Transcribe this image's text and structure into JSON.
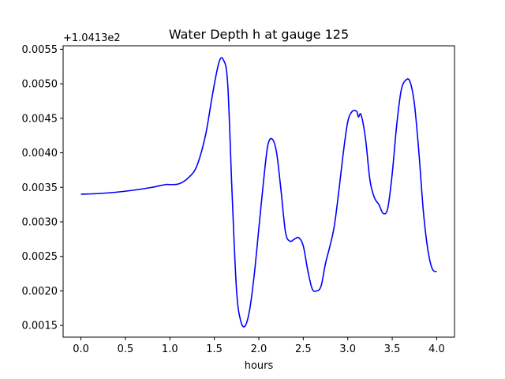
{
  "chart_data": {
    "type": "line",
    "title": "Water Depth h at gauge 125",
    "xlabel": "hours",
    "ylabel": "",
    "y_offset_label": "+1.0413e2",
    "xlim": [
      -0.2,
      4.2
    ],
    "ylim": [
      0.00133,
      0.00555
    ],
    "xticks": [
      0.0,
      0.5,
      1.0,
      1.5,
      2.0,
      2.5,
      3.0,
      3.5,
      4.0
    ],
    "xtick_labels": [
      "0.0",
      "0.5",
      "1.0",
      "1.5",
      "2.0",
      "2.5",
      "3.0",
      "3.5",
      "4.0"
    ],
    "yticks": [
      0.0015,
      0.002,
      0.0025,
      0.003,
      0.0035,
      0.004,
      0.0045,
      0.005,
      0.0055
    ],
    "ytick_labels": [
      "0.0015",
      "0.0020",
      "0.0025",
      "0.0030",
      "0.0035",
      "0.0040",
      "0.0045",
      "0.0050",
      "0.0055"
    ],
    "grid": false,
    "series": [
      {
        "color": "#0000ff",
        "x": [
          0.0,
          0.2,
          0.4,
          0.6,
          0.8,
          0.95,
          1.0,
          1.1,
          1.2,
          1.3,
          1.4,
          1.48,
          1.55,
          1.6,
          1.65,
          1.7,
          1.75,
          1.8,
          1.85,
          1.9,
          1.95,
          2.0,
          2.05,
          2.1,
          2.15,
          2.2,
          2.25,
          2.3,
          2.35,
          2.4,
          2.45,
          2.5,
          2.55,
          2.6,
          2.65,
          2.7,
          2.75,
          2.8,
          2.85,
          2.9,
          2.95,
          3.0,
          3.05,
          3.1,
          3.12,
          3.15,
          3.2,
          3.25,
          3.3,
          3.35,
          3.4,
          3.45,
          3.5,
          3.55,
          3.6,
          3.65,
          3.7,
          3.75,
          3.8,
          3.85,
          3.9,
          3.95,
          4.0
        ],
        "y": [
          0.0034,
          0.00341,
          0.00343,
          0.00346,
          0.0035,
          0.00354,
          0.00354,
          0.00355,
          0.00363,
          0.0038,
          0.00425,
          0.00485,
          0.0053,
          0.00535,
          0.005,
          0.0034,
          0.002,
          0.00155,
          0.0015,
          0.00175,
          0.00225,
          0.0029,
          0.00355,
          0.0041,
          0.0042,
          0.004,
          0.00345,
          0.00285,
          0.00272,
          0.00275,
          0.00277,
          0.00265,
          0.0023,
          0.00203,
          0.002,
          0.00207,
          0.0024,
          0.00265,
          0.00295,
          0.00345,
          0.004,
          0.00445,
          0.0046,
          0.0046,
          0.00452,
          0.00455,
          0.0042,
          0.0036,
          0.00335,
          0.00325,
          0.00312,
          0.0032,
          0.0037,
          0.0044,
          0.0049,
          0.00505,
          0.00503,
          0.0047,
          0.004,
          0.00315,
          0.0026,
          0.00232,
          0.00228
        ]
      }
    ]
  }
}
